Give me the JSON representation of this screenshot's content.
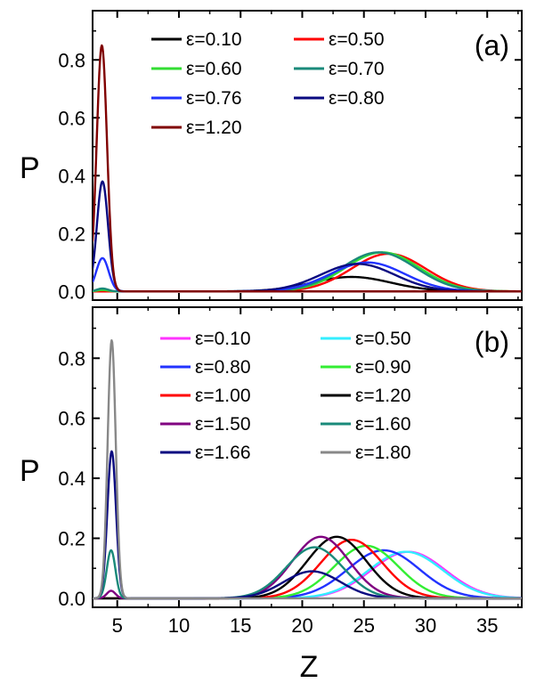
{
  "chart_data": [
    {
      "type": "line",
      "panel_label": "(a)",
      "xlabel": "Z",
      "ylabel": "P",
      "xlim": [
        3,
        37.8
      ],
      "ylim": [
        -0.03,
        0.97
      ],
      "x_ticks": [
        5,
        10,
        15,
        20,
        25,
        30,
        35
      ],
      "y_ticks": [
        0.0,
        0.2,
        0.4,
        0.6,
        0.8
      ],
      "y_tick_labels": [
        "0.0",
        "0.2",
        "0.4",
        "0.6",
        "0.8"
      ],
      "x_tick_labels_shown": false,
      "legend_position": "top-center",
      "series": [
        {
          "name": "ε=0.10",
          "color": "#000000",
          "peak1": {
            "x": 3.8,
            "y": 0.0,
            "w": 0.45
          },
          "peak2": {
            "x": 24.0,
            "y": 0.05,
            "w": 3.2
          }
        },
        {
          "name": "ε=0.50",
          "color": "#ff0000",
          "peak1": {
            "x": 3.8,
            "y": 0.0,
            "w": 0.45
          },
          "peak2": {
            "x": 27.0,
            "y": 0.13,
            "w": 3.0
          }
        },
        {
          "name": "ε=0.60",
          "color": "#33dd33",
          "peak1": {
            "x": 3.8,
            "y": 0.005,
            "w": 0.45
          },
          "peak2": {
            "x": 26.5,
            "y": 0.135,
            "w": 3.0
          }
        },
        {
          "name": "ε=0.70",
          "color": "#1a8a7a",
          "peak1": {
            "x": 3.8,
            "y": 0.01,
            "w": 0.45
          },
          "peak2": {
            "x": 26.2,
            "y": 0.135,
            "w": 3.0
          }
        },
        {
          "name": "ε=0.76",
          "color": "#2233ff",
          "peak1": {
            "x": 3.8,
            "y": 0.115,
            "w": 0.5
          },
          "peak2": {
            "x": 25.3,
            "y": 0.1,
            "w": 3.0
          }
        },
        {
          "name": "ε=0.80",
          "color": "#0a0a80",
          "peak1": {
            "x": 3.8,
            "y": 0.38,
            "w": 0.45
          },
          "peak2": {
            "x": 24.5,
            "y": 0.095,
            "w": 3.0
          }
        },
        {
          "name": "ε=1.20",
          "color": "#800000",
          "peak1": {
            "x": 3.75,
            "y": 0.85,
            "w": 0.42
          },
          "peak2": {
            "x": 24.0,
            "y": 0.0,
            "w": 3.0
          }
        }
      ]
    },
    {
      "type": "line",
      "panel_label": "(b)",
      "xlabel": "Z",
      "ylabel": "P",
      "xlim": [
        3,
        37.8
      ],
      "ylim": [
        -0.03,
        0.97
      ],
      "x_ticks": [
        5,
        10,
        15,
        20,
        25,
        30,
        35
      ],
      "x_tick_labels": [
        "5",
        "10",
        "15",
        "20",
        "25",
        "30",
        "35"
      ],
      "y_ticks": [
        0.0,
        0.2,
        0.4,
        0.6,
        0.8
      ],
      "y_tick_labels": [
        "0.0",
        "0.2",
        "0.4",
        "0.6",
        "0.8"
      ],
      "legend_position": "top-center",
      "series": [
        {
          "name": "ε=0.10",
          "color": "#ff33ff",
          "peak1": {
            "x": 4.5,
            "y": 0.0,
            "w": 0.35
          },
          "peak2": {
            "x": 28.6,
            "y": 0.155,
            "w": 3.0
          }
        },
        {
          "name": "ε=0.50",
          "color": "#33eeff",
          "peak1": {
            "x": 4.5,
            "y": 0.0,
            "w": 0.35
          },
          "peak2": {
            "x": 28.4,
            "y": 0.155,
            "w": 3.0
          }
        },
        {
          "name": "ε=0.80",
          "color": "#2233ff",
          "peak1": {
            "x": 4.5,
            "y": 0.0,
            "w": 0.35
          },
          "peak2": {
            "x": 26.6,
            "y": 0.16,
            "w": 2.9
          }
        },
        {
          "name": "ε=0.90",
          "color": "#33ee33",
          "peak1": {
            "x": 4.5,
            "y": 0.0,
            "w": 0.35
          },
          "peak2": {
            "x": 25.2,
            "y": 0.175,
            "w": 2.6
          }
        },
        {
          "name": "ε=1.00",
          "color": "#ff0000",
          "peak1": {
            "x": 4.5,
            "y": 0.0,
            "w": 0.35
          },
          "peak2": {
            "x": 24.0,
            "y": 0.195,
            "w": 2.5
          }
        },
        {
          "name": "ε=1.20",
          "color": "#000000",
          "peak1": {
            "x": 4.5,
            "y": 0.0,
            "w": 0.35
          },
          "peak2": {
            "x": 22.8,
            "y": 0.205,
            "w": 2.4
          }
        },
        {
          "name": "ε=1.50",
          "color": "#800080",
          "peak1": {
            "x": 4.5,
            "y": 0.025,
            "w": 0.35
          },
          "peak2": {
            "x": 21.5,
            "y": 0.205,
            "w": 2.3
          }
        },
        {
          "name": "ε=1.60",
          "color": "#1a8a7a",
          "peak1": {
            "x": 4.5,
            "y": 0.16,
            "w": 0.35
          },
          "peak2": {
            "x": 21.0,
            "y": 0.17,
            "w": 2.3
          }
        },
        {
          "name": "ε=1.66",
          "color": "#0a0a80",
          "peak1": {
            "x": 4.55,
            "y": 0.49,
            "w": 0.35
          },
          "peak2": {
            "x": 20.8,
            "y": 0.09,
            "w": 2.3
          }
        },
        {
          "name": "ε=1.80",
          "color": "#888888",
          "peak1": {
            "x": 4.55,
            "y": 0.86,
            "w": 0.33
          },
          "peak2": {
            "x": 20.5,
            "y": 0.0,
            "w": 2.3
          }
        }
      ]
    }
  ]
}
